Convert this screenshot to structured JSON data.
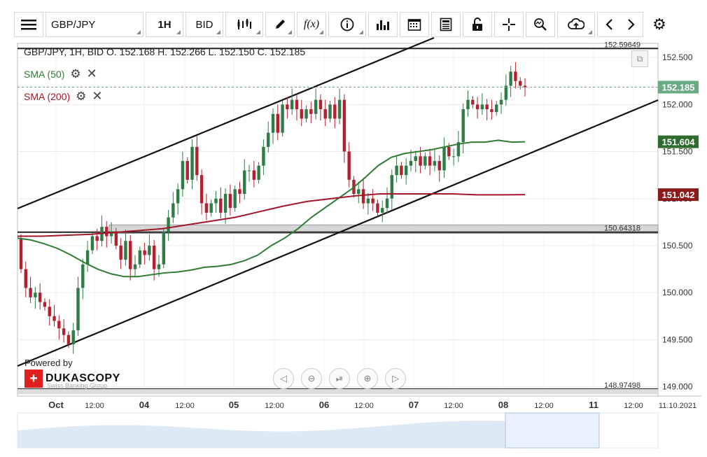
{
  "toolbar": {
    "symbol": "GBP/JPY",
    "timeframe": "1H",
    "side": "BID",
    "fx_label": "f(x)"
  },
  "legend": {
    "ohlc": "GBP/JPY, 1H, BID   O. 152.168  H. 152.266  L. 152.150  C. 152.185",
    "sma50": "SMA (50)",
    "sma200": "SMA (200)"
  },
  "price_labels": {
    "current": "152.185",
    "sma50": "151.604",
    "sma200": "151.042",
    "top_line": "152.59649",
    "mid_line": "150.64318",
    "bottom_line": "148.97498"
  },
  "colors": {
    "candle_up": "#2e7d46",
    "candle_down": "#b3202e",
    "sma50": "#2e7d32",
    "sma200": "#a0182a",
    "current_price": "#6aaa82"
  },
  "powered_by": "Powered by",
  "brand": "DUKASCOPY",
  "brand_sub": "Swiss Banking Group",
  "chart_data": {
    "type": "candlestick",
    "title": "GBP/JPY, 1H, BID",
    "y_ticks": [
      "152.500",
      "152.000",
      "151.500",
      "151.000",
      "150.500",
      "150.000",
      "149.500",
      "149.000"
    ],
    "ylim": [
      148.9,
      152.65
    ],
    "x_ticks": [
      "Oct",
      "12:00",
      "04",
      "12:00",
      "05",
      "12:00",
      "06",
      "12:00",
      "07",
      "12:00",
      "08",
      "12:00",
      "11",
      "12:00",
      "11.10.2021"
    ],
    "series": [
      {
        "name": "SMA (50)",
        "last": 151.604
      },
      {
        "name": "SMA (200)",
        "last": 151.042
      }
    ],
    "close": [
      150.25,
      150.05,
      149.95,
      150.0,
      149.9,
      149.85,
      149.75,
      149.7,
      149.62,
      149.55,
      149.45,
      149.6,
      150.05,
      150.3,
      150.45,
      150.6,
      150.55,
      150.7,
      150.6,
      150.65,
      150.5,
      150.35,
      150.55,
      150.25,
      150.3,
      150.45,
      150.4,
      150.5,
      150.25,
      150.3,
      150.65,
      150.8,
      150.95,
      151.1,
      151.4,
      151.2,
      151.55,
      151.25,
      150.95,
      150.85,
      150.95,
      151.0,
      150.85,
      151.05,
      150.9,
      151.1,
      151.05,
      151.3,
      151.3,
      151.2,
      151.35,
      151.55,
      151.7,
      151.9,
      151.7,
      152.0,
      151.95,
      152.05,
      151.95,
      151.85,
      151.95,
      151.9,
      152.05,
      151.95,
      151.85,
      152.0,
      151.85,
      152.05,
      151.5,
      151.2,
      151.05,
      151.1,
      150.95,
      151.0,
      150.95,
      150.85,
      150.9,
      151.0,
      151.25,
      151.35,
      151.25,
      151.35,
      151.4,
      151.45,
      151.35,
      151.45,
      151.35,
      151.4,
      151.3,
      151.55,
      151.45,
      151.45,
      151.6,
      151.95,
      152.05,
      152.0,
      151.95,
      152.0,
      151.95,
      151.92,
      152.0,
      152.05,
      152.2,
      152.35,
      152.25,
      152.2,
      152.185
    ],
    "sma50": [
      150.58,
      150.56,
      150.52,
      150.47,
      150.4,
      150.32,
      150.25,
      150.2,
      150.17,
      150.17,
      150.19,
      150.21,
      150.22,
      150.24,
      150.27,
      150.28,
      150.3,
      150.34,
      150.4,
      150.5,
      150.58,
      150.68,
      150.8,
      150.9,
      151.0,
      151.1,
      151.22,
      151.35,
      151.44,
      151.48,
      151.5,
      151.52,
      151.55,
      151.58,
      151.6,
      151.6,
      151.62,
      151.6,
      151.604
    ],
    "sma200": [
      150.6,
      150.6,
      150.61,
      150.62,
      150.64,
      150.66,
      150.68,
      150.72,
      150.76,
      150.8,
      150.86,
      150.92,
      150.97,
      151.0,
      151.03,
      151.05,
      151.05,
      151.05,
      151.05,
      151.04,
      151.04,
      151.042
    ]
  }
}
